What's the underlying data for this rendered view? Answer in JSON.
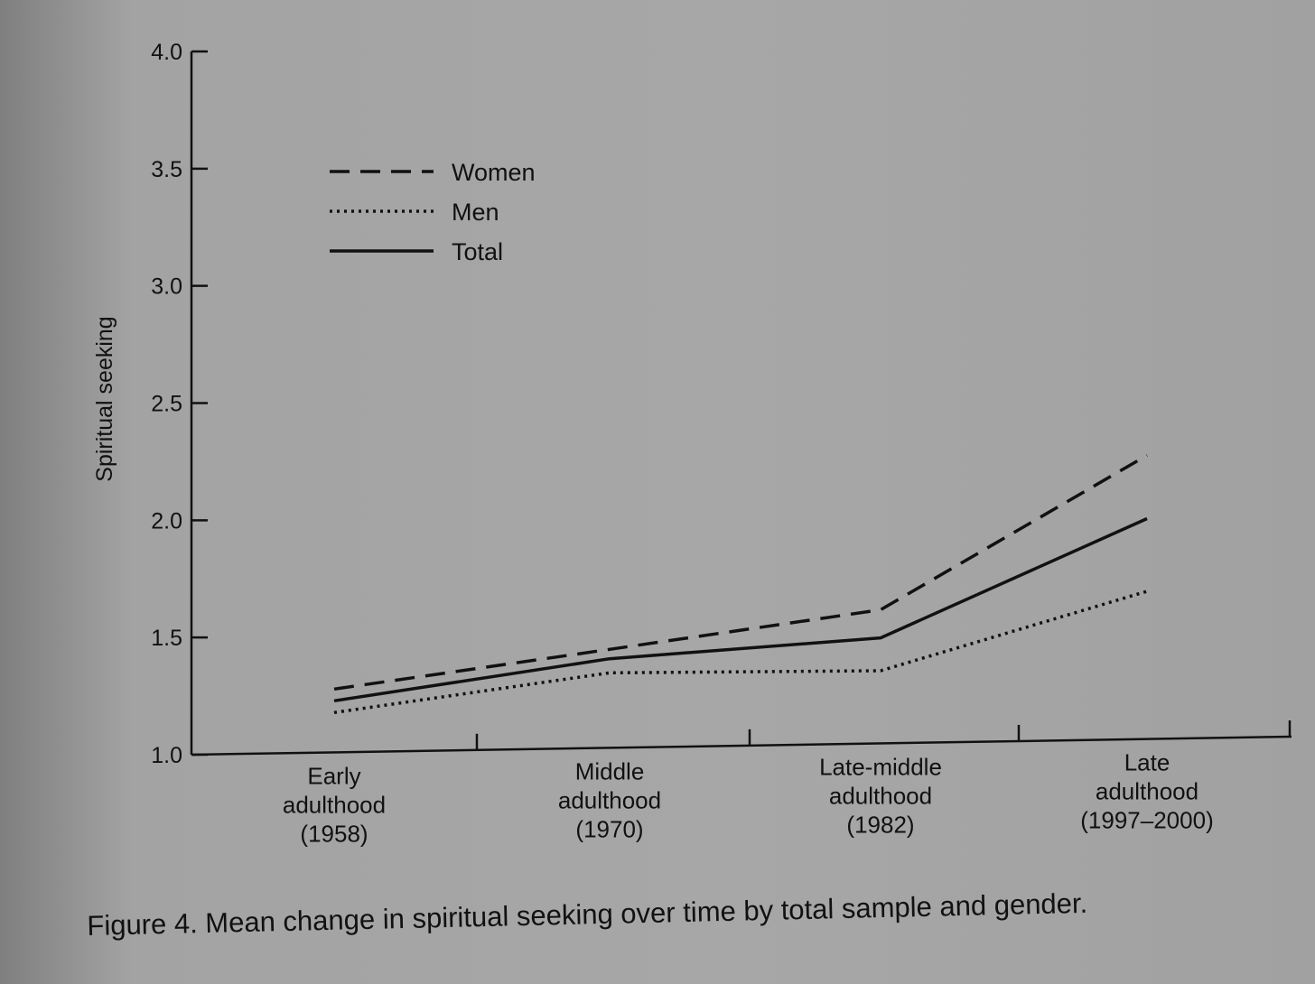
{
  "caption": "Figure 4. Mean change in spiritual seeking over time by total sample and gender.",
  "chart_data": {
    "type": "line",
    "ylabel": "Spiritual seeking",
    "xlabel": "",
    "ylim": [
      1.0,
      4.0
    ],
    "yticks": [
      "1.0",
      "1.5",
      "2.0",
      "2.5",
      "3.0",
      "3.5",
      "4.0"
    ],
    "categories": [
      [
        "Early",
        "adulthood",
        "(1958)"
      ],
      [
        "Middle",
        "adulthood",
        "(1970)"
      ],
      [
        "Late-middle",
        "adulthood",
        "(1982)"
      ],
      [
        "Late",
        "adulthood",
        "(1997–2000)"
      ]
    ],
    "legend_position": "top-left",
    "grid": false,
    "series": [
      {
        "name": "Women",
        "style": "dashed",
        "values": [
          1.27,
          1.42,
          1.57,
          2.21
        ]
      },
      {
        "name": "Men",
        "style": "dotted",
        "values": [
          1.17,
          1.32,
          1.31,
          1.63
        ]
      },
      {
        "name": "Total",
        "style": "solid",
        "values": [
          1.22,
          1.38,
          1.45,
          1.94
        ]
      }
    ]
  }
}
